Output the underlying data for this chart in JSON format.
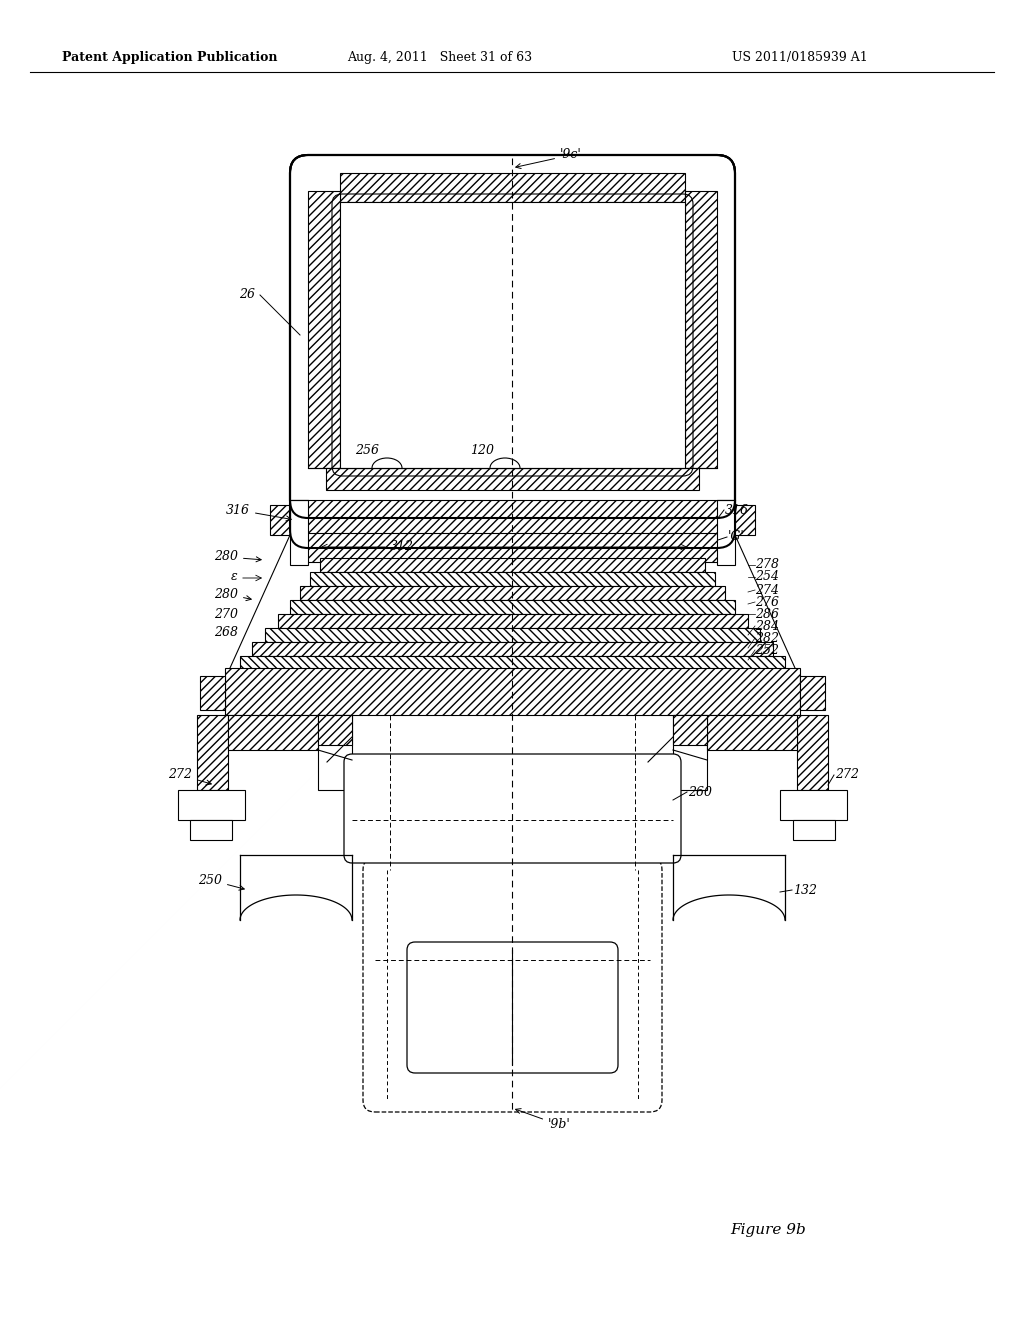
{
  "bg_color": "#ffffff",
  "header_left": "Patent Application Publication",
  "header_mid": "Aug. 4, 2011   Sheet 31 of 63",
  "header_right": "US 2011/0185939 A1",
  "figure_label": "Figure 9b"
}
